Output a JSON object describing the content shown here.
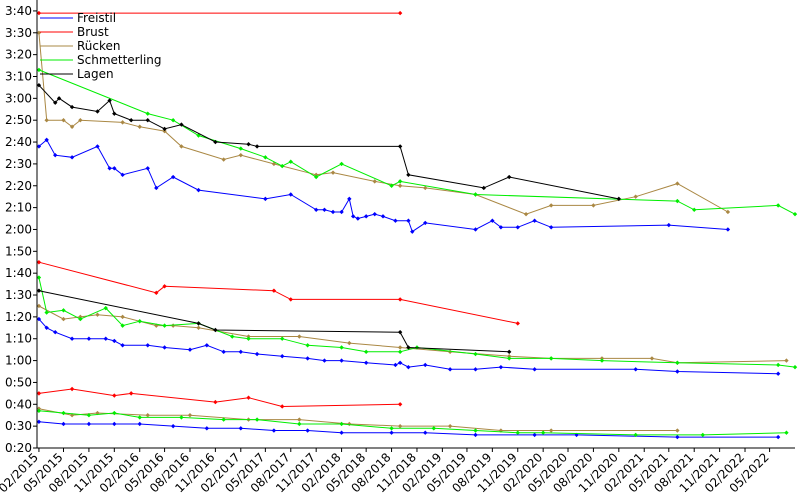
{
  "chart_data": {
    "type": "line",
    "title": "",
    "xlabel": "",
    "ylabel": "",
    "legend": {
      "placement": "top-left"
    },
    "x_ticks": [
      "02/2015",
      "05/2015",
      "08/2015",
      "11/2015",
      "02/2016",
      "05/2016",
      "08/2016",
      "11/2016",
      "02/2017",
      "05/2017",
      "08/2017",
      "11/2017",
      "02/2018",
      "05/2018",
      "08/2018",
      "11/2018",
      "02/2019",
      "05/2019",
      "08/2019",
      "11/2019",
      "02/2020",
      "05/2020",
      "08/2020",
      "11/2020",
      "02/2021",
      "05/2021",
      "08/2021",
      "11/2021",
      "02/2022",
      "05/2022"
    ],
    "y_ticks": [
      "0:20",
      "0:30",
      "0:40",
      "0:50",
      "1:00",
      "1:10",
      "1:20",
      "1:30",
      "1:40",
      "1:50",
      "2:00",
      "2:10",
      "2:20",
      "2:30",
      "2:40",
      "2:50",
      "3:00",
      "3:10",
      "3:20",
      "3:30",
      "3:40"
    ],
    "xlim": [
      "2015-01-25",
      "2022-08-01"
    ],
    "ylim_seconds": [
      20,
      225
    ],
    "grid": false,
    "series": [
      {
        "name": "Freistil",
        "color": "#0000ff",
        "lines": [
          [
            [
              "2015-02-01",
              158
            ],
            [
              "2015-03-01",
              161
            ],
            [
              "2015-04-01",
              154
            ],
            [
              "2015-06-01",
              153
            ],
            [
              "2015-09-01",
              158
            ],
            [
              "2015-10-15",
              148
            ],
            [
              "2015-11-01",
              148
            ],
            [
              "2015-12-01",
              145
            ],
            [
              "2016-03-01",
              148
            ],
            [
              "2016-04-01",
              139
            ],
            [
              "2016-06-01",
              144
            ],
            [
              "2016-09-01",
              138
            ],
            [
              "2017-05-01",
              134
            ],
            [
              "2017-08-01",
              136
            ],
            [
              "2017-11-01",
              129
            ],
            [
              "2017-12-01",
              129
            ],
            [
              "2018-01-01",
              128
            ],
            [
              "2018-02-01",
              128
            ],
            [
              "2018-03-01",
              134
            ],
            [
              "2018-03-15",
              126
            ],
            [
              "2018-04-01",
              125
            ],
            [
              "2018-05-01",
              126
            ],
            [
              "2018-06-01",
              127
            ],
            [
              "2018-07-01",
              126
            ],
            [
              "2018-08-15",
              124
            ],
            [
              "2018-10-01",
              124
            ],
            [
              "2018-10-15",
              119
            ],
            [
              "2018-12-01",
              123
            ],
            [
              "2019-06-01",
              120
            ],
            [
              "2019-08-01",
              124
            ],
            [
              "2019-09-01",
              121
            ],
            [
              "2019-11-01",
              121
            ],
            [
              "2020-01-01",
              124
            ],
            [
              "2020-03-01",
              121
            ],
            [
              "2021-05-01",
              122
            ],
            [
              "2021-12-01",
              120
            ]
          ],
          [
            [
              "2015-02-01",
              79
            ],
            [
              "2015-03-01",
              75
            ],
            [
              "2015-04-01",
              73
            ],
            [
              "2015-06-01",
              70
            ],
            [
              "2015-08-01",
              70
            ],
            [
              "2015-10-01",
              70
            ],
            [
              "2015-11-01",
              69
            ],
            [
              "2015-12-01",
              67
            ],
            [
              "2016-03-01",
              67
            ],
            [
              "2016-05-01",
              66
            ],
            [
              "2016-08-01",
              65
            ],
            [
              "2016-10-01",
              67
            ],
            [
              "2016-12-01",
              64
            ],
            [
              "2017-02-01",
              64
            ],
            [
              "2017-04-01",
              63
            ],
            [
              "2017-07-01",
              62
            ],
            [
              "2017-10-01",
              61
            ],
            [
              "2017-12-01",
              60
            ],
            [
              "2018-02-01",
              60
            ],
            [
              "2018-05-01",
              59
            ],
            [
              "2018-08-15",
              58
            ],
            [
              "2018-09-01",
              59
            ],
            [
              "2018-10-01",
              57
            ],
            [
              "2018-12-01",
              58
            ],
            [
              "2019-03-01",
              56
            ],
            [
              "2019-06-01",
              56
            ],
            [
              "2019-09-01",
              57
            ],
            [
              "2020-01-01",
              56
            ],
            [
              "2021-01-01",
              56
            ],
            [
              "2021-06-01",
              55
            ],
            [
              "2022-06-01",
              54
            ]
          ],
          [
            [
              "2015-02-01",
              32
            ],
            [
              "2015-05-01",
              31
            ],
            [
              "2015-08-01",
              31
            ],
            [
              "2015-11-01",
              31
            ],
            [
              "2016-02-01",
              31
            ],
            [
              "2016-06-01",
              30
            ],
            [
              "2016-10-01",
              29
            ],
            [
              "2017-02-01",
              29
            ],
            [
              "2017-06-01",
              28
            ],
            [
              "2017-10-01",
              28
            ],
            [
              "2018-02-01",
              27
            ],
            [
              "2018-08-01",
              27
            ],
            [
              "2018-12-01",
              27
            ],
            [
              "2019-06-01",
              26
            ],
            [
              "2020-01-01",
              26
            ],
            [
              "2020-06-01",
              26
            ],
            [
              "2021-06-01",
              25
            ],
            [
              "2022-06-01",
              25
            ]
          ]
        ]
      },
      {
        "name": "Brust",
        "color": "#ff0000",
        "lines": [
          [
            [
              "2015-02-01",
              219
            ],
            [
              "2018-09-01",
              219
            ]
          ],
          [
            [
              "2015-02-01",
              105
            ],
            [
              "2016-04-01",
              91
            ],
            [
              "2016-05-01",
              94
            ],
            [
              "2017-06-01",
              92
            ],
            [
              "2017-08-01",
              88
            ],
            [
              "2018-09-01",
              88
            ],
            [
              "2019-11-01",
              77
            ]
          ],
          [
            [
              "2015-02-01",
              45
            ],
            [
              "2015-06-01",
              47
            ],
            [
              "2015-11-01",
              44
            ],
            [
              "2016-01-01",
              45
            ],
            [
              "2016-11-01",
              41
            ],
            [
              "2017-03-01",
              43
            ],
            [
              "2017-07-01",
              39
            ],
            [
              "2018-09-01",
              40
            ]
          ]
        ]
      },
      {
        "name": "Rücken",
        "color": "#aa8844",
        "lines": [
          [
            [
              "2015-02-01",
              210
            ],
            [
              "2015-03-01",
              170
            ],
            [
              "2015-05-01",
              170
            ],
            [
              "2015-06-01",
              167
            ],
            [
              "2015-07-01",
              170
            ],
            [
              "2015-12-01",
              169
            ],
            [
              "2016-02-01",
              167
            ],
            [
              "2016-05-01",
              165
            ],
            [
              "2016-07-01",
              158
            ],
            [
              "2016-12-01",
              152
            ],
            [
              "2017-02-01",
              154
            ],
            [
              "2017-06-01",
              150
            ],
            [
              "2017-11-01",
              145
            ],
            [
              "2018-01-01",
              146
            ],
            [
              "2018-06-01",
              142
            ],
            [
              "2018-09-01",
              140
            ],
            [
              "2018-12-01",
              139
            ],
            [
              "2019-06-01",
              136
            ],
            [
              "2019-12-01",
              127
            ],
            [
              "2020-03-01",
              131
            ],
            [
              "2020-08-01",
              131
            ],
            [
              "2021-01-01",
              135
            ],
            [
              "2021-06-01",
              141
            ],
            [
              "2021-12-01",
              128
            ]
          ],
          [
            [
              "2015-02-01",
              85
            ],
            [
              "2015-05-01",
              79
            ],
            [
              "2015-07-01",
              80
            ],
            [
              "2015-09-01",
              81
            ],
            [
              "2015-12-01",
              80
            ],
            [
              "2016-04-01",
              76
            ],
            [
              "2016-06-01",
              76
            ],
            [
              "2016-09-01",
              75
            ],
            [
              "2017-03-01",
              71
            ],
            [
              "2017-09-01",
              71
            ],
            [
              "2018-03-01",
              68
            ],
            [
              "2018-09-01",
              66
            ],
            [
              "2019-03-01",
              64
            ],
            [
              "2019-10-01",
              62
            ],
            [
              "2020-03-01",
              61
            ],
            [
              "2020-09-01",
              61
            ],
            [
              "2021-03-01",
              61
            ],
            [
              "2021-06-01",
              59
            ],
            [
              "2022-07-01",
              60
            ]
          ],
          [
            [
              "2015-02-01",
              38
            ],
            [
              "2015-06-01",
              35
            ],
            [
              "2015-09-01",
              36
            ],
            [
              "2016-03-01",
              35
            ],
            [
              "2016-08-01",
              35
            ],
            [
              "2017-03-01",
              33
            ],
            [
              "2017-09-01",
              33
            ],
            [
              "2018-03-01",
              31
            ],
            [
              "2018-09-01",
              30
            ],
            [
              "2019-03-01",
              30
            ],
            [
              "2019-09-01",
              28
            ],
            [
              "2020-03-01",
              28
            ],
            [
              "2021-06-01",
              28
            ]
          ]
        ]
      },
      {
        "name": "Schmetterling",
        "color": "#00ee00",
        "lines": [
          [
            [
              "2015-02-01",
              193
            ],
            [
              "2016-03-01",
              173
            ],
            [
              "2016-06-01",
              170
            ],
            [
              "2016-09-01",
              163
            ],
            [
              "2017-02-01",
              157
            ],
            [
              "2017-05-01",
              153
            ],
            [
              "2017-07-01",
              149
            ],
            [
              "2017-08-01",
              151
            ],
            [
              "2017-11-01",
              144
            ],
            [
              "2018-02-01",
              150
            ],
            [
              "2018-08-01",
              140
            ],
            [
              "2018-09-01",
              142
            ],
            [
              "2019-06-01",
              136
            ],
            [
              "2021-06-01",
              133
            ],
            [
              "2021-08-01",
              129
            ],
            [
              "2022-06-01",
              131
            ],
            [
              "2022-08-01",
              127
            ]
          ],
          [
            [
              "2015-02-01",
              98
            ],
            [
              "2015-03-01",
              82
            ],
            [
              "2015-05-01",
              83
            ],
            [
              "2015-07-01",
              79
            ],
            [
              "2015-10-01",
              84
            ],
            [
              "2015-12-01",
              76
            ],
            [
              "2016-02-01",
              78
            ],
            [
              "2016-05-01",
              76
            ],
            [
              "2016-09-01",
              77
            ],
            [
              "2017-01-01",
              71
            ],
            [
              "2017-03-01",
              70
            ],
            [
              "2017-07-01",
              70
            ],
            [
              "2017-10-01",
              67
            ],
            [
              "2018-02-01",
              66
            ],
            [
              "2018-05-01",
              64
            ],
            [
              "2018-09-01",
              64
            ],
            [
              "2018-11-01",
              66
            ],
            [
              "2019-06-01",
              63
            ],
            [
              "2019-10-01",
              61
            ],
            [
              "2020-03-01",
              61
            ],
            [
              "2020-09-01",
              60
            ],
            [
              "2021-06-01",
              59
            ],
            [
              "2022-06-01",
              58
            ],
            [
              "2022-08-01",
              57
            ]
          ],
          [
            [
              "2015-02-01",
              37
            ],
            [
              "2015-05-01",
              36
            ],
            [
              "2015-08-01",
              35
            ],
            [
              "2015-11-01",
              36
            ],
            [
              "2016-02-01",
              34
            ],
            [
              "2016-07-01",
              34
            ],
            [
              "2016-12-01",
              33
            ],
            [
              "2017-04-01",
              33
            ],
            [
              "2017-09-01",
              31
            ],
            [
              "2018-02-01",
              31
            ],
            [
              "2018-08-01",
              29
            ],
            [
              "2019-01-01",
              29
            ],
            [
              "2019-06-01",
              28
            ],
            [
              "2019-11-01",
              27
            ],
            [
              "2020-02-01",
              27
            ],
            [
              "2021-01-01",
              26
            ],
            [
              "2021-09-01",
              26
            ],
            [
              "2022-07-01",
              27
            ]
          ]
        ]
      },
      {
        "name": "Lagen",
        "color": "#000000",
        "lines": [
          [
            [
              "2015-02-01",
              186
            ],
            [
              "2015-04-01",
              178
            ],
            [
              "2015-04-15",
              180
            ],
            [
              "2015-06-01",
              176
            ],
            [
              "2015-09-01",
              174
            ],
            [
              "2015-10-15",
              179
            ],
            [
              "2015-11-01",
              173
            ],
            [
              "2016-01-01",
              170
            ],
            [
              "2016-03-01",
              170
            ],
            [
              "2016-05-01",
              166
            ],
            [
              "2016-07-01",
              168
            ],
            [
              "2016-11-01",
              160
            ],
            [
              "2017-03-01",
              159
            ],
            [
              "2017-04-01",
              158
            ],
            [
              "2018-09-01",
              158
            ],
            [
              "2018-10-01",
              145
            ],
            [
              "2019-07-01",
              139
            ],
            [
              "2019-10-01",
              144
            ],
            [
              "2020-11-01",
              134
            ]
          ],
          [
            [
              "2015-02-01",
              92
            ],
            [
              "2016-09-01",
              77
            ],
            [
              "2016-11-01",
              74
            ],
            [
              "2018-09-01",
              73
            ],
            [
              "2018-10-01",
              66
            ],
            [
              "2019-10-01",
              64
            ]
          ]
        ]
      }
    ]
  }
}
